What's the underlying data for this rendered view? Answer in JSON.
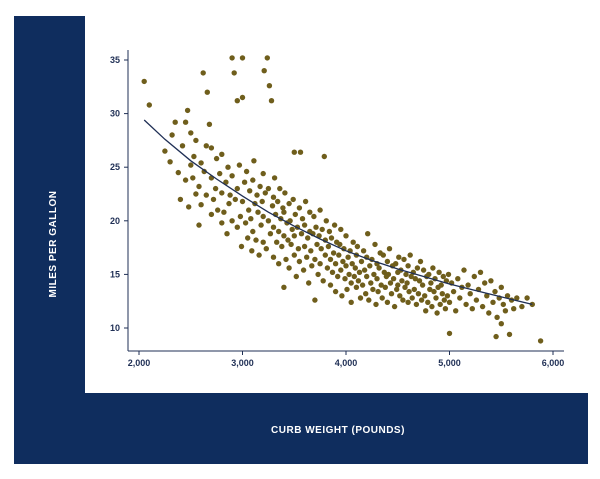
{
  "colors": {
    "frame": "#0f2d5e",
    "plot_background": "#ffffff",
    "axis": "#1f2f55",
    "points": "#6f5e1c",
    "trend_line": "#1f2f55",
    "axis_title": "#ffffff"
  },
  "chart_data": {
    "type": "scatter",
    "title": "",
    "xlabel": "CURB WEIGHT (POUNDS)",
    "ylabel": "MILES PER GALLON",
    "xlim": [
      1950,
      6100
    ],
    "ylim": [
      8.5,
      36.5
    ],
    "grid": false,
    "x_ticks": [
      2000,
      3000,
      4000,
      5000,
      6000
    ],
    "x_tick_labels": [
      "2,000",
      "3,000",
      "4,000",
      "5,000",
      "6,000"
    ],
    "y_ticks": [
      10,
      15,
      20,
      25,
      30,
      35
    ],
    "y_tick_labels": [
      "10",
      "15",
      "20",
      "25",
      "30",
      "35"
    ],
    "trend_line": {
      "x": [
        2050,
        2250,
        2500,
        2750,
        3000,
        3250,
        3500,
        3750,
        4000,
        4250,
        4500,
        4750,
        5000,
        5250,
        5500,
        5800
      ],
      "y": [
        29.4,
        27.6,
        25.6,
        23.9,
        22.3,
        20.8,
        19.5,
        18.3,
        17.2,
        16.3,
        15.5,
        14.8,
        14.1,
        13.5,
        12.9,
        12.2
      ]
    },
    "points": [
      [
        2050,
        33
      ],
      [
        2100,
        30.8
      ],
      [
        2250,
        26.5
      ],
      [
        2300,
        25.5
      ],
      [
        2320,
        28
      ],
      [
        2350,
        29.2
      ],
      [
        2380,
        24.5
      ],
      [
        2400,
        22
      ],
      [
        2420,
        27
      ],
      [
        2450,
        29.2
      ],
      [
        2450,
        23.8
      ],
      [
        2470,
        30.3
      ],
      [
        2480,
        21.3
      ],
      [
        2500,
        25.2
      ],
      [
        2500,
        28.2
      ],
      [
        2520,
        24
      ],
      [
        2530,
        26
      ],
      [
        2550,
        22.5
      ],
      [
        2550,
        27.5
      ],
      [
        2580,
        19.6
      ],
      [
        2580,
        23.2
      ],
      [
        2600,
        25.4
      ],
      [
        2600,
        21.5
      ],
      [
        2620,
        33.8
      ],
      [
        2630,
        24.6
      ],
      [
        2650,
        22.4
      ],
      [
        2650,
        27
      ],
      [
        2660,
        32
      ],
      [
        2680,
        29
      ],
      [
        2700,
        20.6
      ],
      [
        2700,
        24
      ],
      [
        2700,
        26.8
      ],
      [
        2720,
        22
      ],
      [
        2740,
        23
      ],
      [
        2750,
        25.8
      ],
      [
        2760,
        21
      ],
      [
        2780,
        24.4
      ],
      [
        2800,
        19.8
      ],
      [
        2800,
        22.6
      ],
      [
        2800,
        26.2
      ],
      [
        2820,
        20.8
      ],
      [
        2840,
        23.6
      ],
      [
        2850,
        18.8
      ],
      [
        2860,
        25
      ],
      [
        2870,
        21.6
      ],
      [
        2880,
        22.4
      ],
      [
        2900,
        20
      ],
      [
        2900,
        24.2
      ],
      [
        2900,
        35.2
      ],
      [
        2920,
        33.8
      ],
      [
        2930,
        22
      ],
      [
        2950,
        19.4
      ],
      [
        2950,
        23
      ],
      [
        2950,
        31.2
      ],
      [
        2970,
        25.2
      ],
      [
        2980,
        20.4
      ],
      [
        2990,
        17.6
      ],
      [
        3000,
        21.8
      ],
      [
        3000,
        35.2
      ],
      [
        3000,
        31.5
      ],
      [
        3020,
        23.6
      ],
      [
        3030,
        19.8
      ],
      [
        3040,
        24.6
      ],
      [
        3050,
        18.4
      ],
      [
        3060,
        21
      ],
      [
        3070,
        22.8
      ],
      [
        3080,
        20.2
      ],
      [
        3090,
        17.2
      ],
      [
        3100,
        23.8
      ],
      [
        3100,
        19
      ],
      [
        3110,
        25.6
      ],
      [
        3120,
        21.6
      ],
      [
        3130,
        18.2
      ],
      [
        3140,
        22.4
      ],
      [
        3150,
        20.8
      ],
      [
        3160,
        16.8
      ],
      [
        3170,
        23.2
      ],
      [
        3180,
        19.6
      ],
      [
        3190,
        21.8
      ],
      [
        3200,
        18
      ],
      [
        3200,
        24.4
      ],
      [
        3200,
        20.4
      ],
      [
        3210,
        34
      ],
      [
        3220,
        22.6
      ],
      [
        3230,
        17.4
      ],
      [
        3240,
        35.2
      ],
      [
        3250,
        20
      ],
      [
        3250,
        23
      ],
      [
        3260,
        32.6
      ],
      [
        3270,
        18.8
      ],
      [
        3280,
        31.2
      ],
      [
        3290,
        21.4
      ],
      [
        3300,
        16.6
      ],
      [
        3300,
        19.4
      ],
      [
        3300,
        22.2
      ],
      [
        3310,
        24
      ],
      [
        3320,
        20.6
      ],
      [
        3330,
        18
      ],
      [
        3340,
        21.8
      ],
      [
        3350,
        16
      ],
      [
        3350,
        19
      ],
      [
        3360,
        23
      ],
      [
        3370,
        20.2
      ],
      [
        3380,
        17.6
      ],
      [
        3390,
        21.2
      ],
      [
        3400,
        13.8
      ],
      [
        3400,
        18.6
      ],
      [
        3400,
        20.8
      ],
      [
        3410,
        22.6
      ],
      [
        3420,
        16.4
      ],
      [
        3430,
        19.8
      ],
      [
        3440,
        18.2
      ],
      [
        3450,
        21.6
      ],
      [
        3450,
        15.6
      ],
      [
        3460,
        20
      ],
      [
        3470,
        17.8
      ],
      [
        3480,
        19.2
      ],
      [
        3490,
        22
      ],
      [
        3500,
        16.8
      ],
      [
        3500,
        18.6
      ],
      [
        3500,
        26.4
      ],
      [
        3510,
        20.6
      ],
      [
        3520,
        14.8
      ],
      [
        3530,
        19.4
      ],
      [
        3540,
        17.4
      ],
      [
        3550,
        21.2
      ],
      [
        3550,
        16.2
      ],
      [
        3560,
        26.4
      ],
      [
        3570,
        18.8
      ],
      [
        3580,
        20.2
      ],
      [
        3590,
        15.4
      ],
      [
        3600,
        17.6
      ],
      [
        3600,
        19.6
      ],
      [
        3610,
        21.8
      ],
      [
        3620,
        16.6
      ],
      [
        3630,
        18.4
      ],
      [
        3640,
        14.2
      ],
      [
        3650,
        19
      ],
      [
        3650,
        20.8
      ],
      [
        3660,
        17.2
      ],
      [
        3670,
        15.8
      ],
      [
        3680,
        18.8
      ],
      [
        3690,
        20.4
      ],
      [
        3700,
        16.4
      ],
      [
        3700,
        12.6
      ],
      [
        3710,
        19.4
      ],
      [
        3720,
        17.8
      ],
      [
        3730,
        15
      ],
      [
        3740,
        18.6
      ],
      [
        3750,
        21
      ],
      [
        3750,
        16
      ],
      [
        3760,
        17.4
      ],
      [
        3770,
        19.2
      ],
      [
        3780,
        14.4
      ],
      [
        3790,
        26
      ],
      [
        3800,
        16.8
      ],
      [
        3800,
        18.2
      ],
      [
        3810,
        20
      ],
      [
        3820,
        15.6
      ],
      [
        3830,
        17.6
      ],
      [
        3840,
        19
      ],
      [
        3850,
        14
      ],
      [
        3850,
        16.4
      ],
      [
        3860,
        18.4
      ],
      [
        3870,
        15.2
      ],
      [
        3880,
        17
      ],
      [
        3890,
        19.6
      ],
      [
        3900,
        16
      ],
      [
        3900,
        13.4
      ],
      [
        3910,
        18
      ],
      [
        3920,
        14.8
      ],
      [
        3930,
        16.8
      ],
      [
        3940,
        17.8
      ],
      [
        3950,
        15.4
      ],
      [
        3950,
        19.2
      ],
      [
        3960,
        13
      ],
      [
        3970,
        16.2
      ],
      [
        3980,
        17.4
      ],
      [
        3990,
        14.6
      ],
      [
        4000,
        15.8
      ],
      [
        4000,
        18.6
      ],
      [
        4010,
        13.6
      ],
      [
        4020,
        16.6
      ],
      [
        4030,
        15
      ],
      [
        4040,
        17.2
      ],
      [
        4050,
        14.2
      ],
      [
        4050,
        12.4
      ],
      [
        4060,
        16
      ],
      [
        4070,
        18
      ],
      [
        4080,
        14.8
      ],
      [
        4090,
        15.6
      ],
      [
        4100,
        13.8
      ],
      [
        4100,
        16.8
      ],
      [
        4110,
        17.6
      ],
      [
        4120,
        14.4
      ],
      [
        4130,
        15.2
      ],
      [
        4140,
        12.8
      ],
      [
        4150,
        16.2
      ],
      [
        4160,
        14
      ],
      [
        4170,
        17.2
      ],
      [
        4180,
        15.4
      ],
      [
        4190,
        13.2
      ],
      [
        4200,
        14.8
      ],
      [
        4200,
        16.6
      ],
      [
        4210,
        18.8
      ],
      [
        4220,
        12.6
      ],
      [
        4230,
        15.8
      ],
      [
        4240,
        14.2
      ],
      [
        4250,
        16.4
      ],
      [
        4260,
        13.6
      ],
      [
        4270,
        15
      ],
      [
        4280,
        17.8
      ],
      [
        4290,
        12.2
      ],
      [
        4300,
        14.6
      ],
      [
        4300,
        16
      ],
      [
        4310,
        13.4
      ],
      [
        4320,
        15.6
      ],
      [
        4330,
        17
      ],
      [
        4340,
        14
      ],
      [
        4350,
        12.8
      ],
      [
        4360,
        16.8
      ],
      [
        4370,
        15.2
      ],
      [
        4380,
        13.8
      ],
      [
        4390,
        14.8
      ],
      [
        4400,
        16.2
      ],
      [
        4400,
        12.4
      ],
      [
        4410,
        15
      ],
      [
        4420,
        17.4
      ],
      [
        4430,
        14.2
      ],
      [
        4440,
        13.2
      ],
      [
        4450,
        15.8
      ],
      [
        4460,
        14.6
      ],
      [
        4470,
        12
      ],
      [
        4480,
        16
      ],
      [
        4490,
        13.6
      ],
      [
        4500,
        15.2
      ],
      [
        4500,
        14
      ],
      [
        4510,
        16.6
      ],
      [
        4520,
        13
      ],
      [
        4530,
        15.4
      ],
      [
        4540,
        14.4
      ],
      [
        4550,
        12.6
      ],
      [
        4560,
        16.4
      ],
      [
        4570,
        13.8
      ],
      [
        4580,
        15
      ],
      [
        4590,
        14.2
      ],
      [
        4600,
        12.4
      ],
      [
        4600,
        15.8
      ],
      [
        4610,
        13.4
      ],
      [
        4620,
        16.8
      ],
      [
        4630,
        14.8
      ],
      [
        4640,
        12.8
      ],
      [
        4650,
        15.2
      ],
      [
        4660,
        13.6
      ],
      [
        4670,
        14.6
      ],
      [
        4680,
        12.2
      ],
      [
        4690,
        15.6
      ],
      [
        4700,
        13.2
      ],
      [
        4710,
        14.4
      ],
      [
        4720,
        16.2
      ],
      [
        4730,
        12.6
      ],
      [
        4740,
        14
      ],
      [
        4750,
        15.4
      ],
      [
        4760,
        13
      ],
      [
        4770,
        11.6
      ],
      [
        4780,
        14.8
      ],
      [
        4790,
        12.4
      ],
      [
        4800,
        15
      ],
      [
        4810,
        13.6
      ],
      [
        4820,
        14.2
      ],
      [
        4830,
        12
      ],
      [
        4840,
        15.6
      ],
      [
        4850,
        13.4
      ],
      [
        4860,
        14.6
      ],
      [
        4870,
        12.8
      ],
      [
        4880,
        11.4
      ],
      [
        4890,
        13.8
      ],
      [
        4900,
        15.2
      ],
      [
        4910,
        12.2
      ],
      [
        4920,
        14
      ],
      [
        4930,
        13.2
      ],
      [
        4940,
        14.8
      ],
      [
        4950,
        12.6
      ],
      [
        4960,
        11.8
      ],
      [
        4970,
        14.4
      ],
      [
        4980,
        13
      ],
      [
        4990,
        15
      ],
      [
        5000,
        9.5
      ],
      [
        5000,
        12.4
      ],
      [
        5020,
        14.2
      ],
      [
        5040,
        13.4
      ],
      [
        5060,
        11.6
      ],
      [
        5080,
        14.6
      ],
      [
        5100,
        12.8
      ],
      [
        5120,
        13.8
      ],
      [
        5140,
        15.4
      ],
      [
        5160,
        12.2
      ],
      [
        5180,
        14
      ],
      [
        5200,
        13.2
      ],
      [
        5220,
        11.8
      ],
      [
        5240,
        14.8
      ],
      [
        5260,
        12.6
      ],
      [
        5280,
        13.6
      ],
      [
        5300,
        15.2
      ],
      [
        5320,
        12
      ],
      [
        5340,
        14.2
      ],
      [
        5360,
        13
      ],
      [
        5380,
        11.4
      ],
      [
        5400,
        14.4
      ],
      [
        5420,
        12.4
      ],
      [
        5440,
        13.4
      ],
      [
        5450,
        9.2
      ],
      [
        5460,
        11
      ],
      [
        5480,
        12.8
      ],
      [
        5500,
        10.4
      ],
      [
        5500,
        13.8
      ],
      [
        5520,
        12.2
      ],
      [
        5540,
        11.6
      ],
      [
        5560,
        13
      ],
      [
        5580,
        9.4
      ],
      [
        5600,
        12.6
      ],
      [
        5620,
        11.8
      ],
      [
        5650,
        12.8
      ],
      [
        5700,
        12
      ],
      [
        5750,
        12.8
      ],
      [
        5800,
        12.2
      ],
      [
        5880,
        8.8
      ]
    ]
  }
}
